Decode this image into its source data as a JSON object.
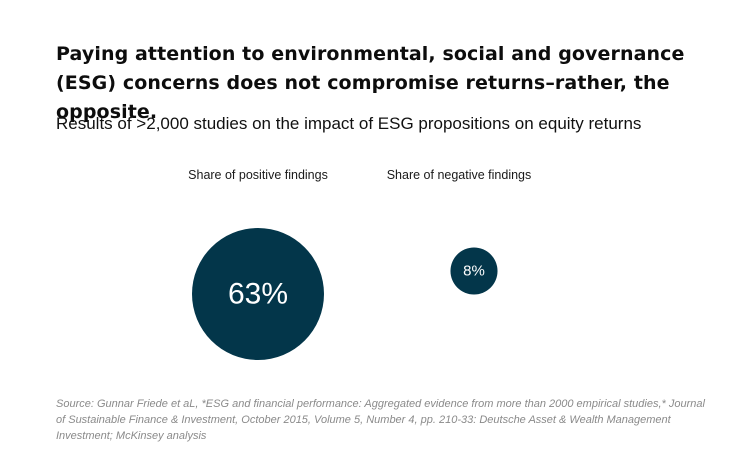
{
  "title": "Paying attention to environmental, social and governance (ESG) concerns does not compromise returns–rather, the opposite.",
  "subtitle": "Results of  >2,000 studies on the impact of ESG propositions on equity returns",
  "colors": {
    "bubble": "#03364a",
    "bubble_text": "#ffffff"
  },
  "chart_data": {
    "type": "bubble",
    "categories": [
      "Share of positive findings",
      "Share of negative findings"
    ],
    "values": [
      63,
      8
    ],
    "value_labels": [
      "63%",
      "8%"
    ],
    "unit": "%"
  },
  "source": "Source: Gunnar Friede et aL, *ESG and financial performance: Aggregated evidence from more than 2000 empirical studies,* Journal of Sustainable Finance & Investment, October 2015, Volume 5, Number 4, pp. 210-33: Deutsche Asset & Wealth Management Investment; McKinsey analysis"
}
